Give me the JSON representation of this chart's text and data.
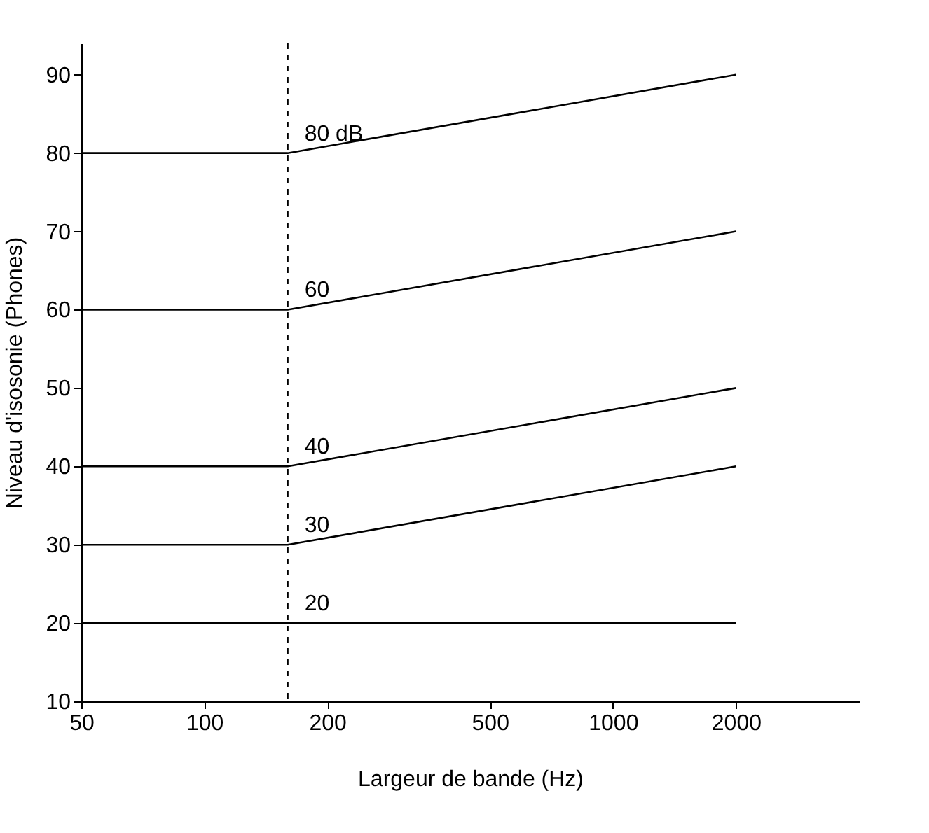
{
  "chart_data": {
    "type": "line",
    "xlabel": "Largeur de bande (Hz)",
    "ylabel": "Niveau d'isosonie (Phones)",
    "xlim": [
      50,
      4000
    ],
    "xticks": [
      50,
      100,
      200,
      500,
      1000,
      2000
    ],
    "ylim": [
      10,
      94
    ],
    "yticks": [
      10,
      20,
      30,
      40,
      50,
      60,
      70,
      80,
      90
    ],
    "log": "x",
    "series": [
      {
        "name": "80 dB",
        "color": "#000000",
        "x": [
          50,
          160,
          2000
        ],
        "values": [
          80,
          80,
          90
        ]
      },
      {
        "name": "60",
        "color": "#000000",
        "x": [
          50,
          160,
          2000
        ],
        "values": [
          60,
          60,
          70
        ]
      },
      {
        "name": "40",
        "color": "#000000",
        "x": [
          50,
          160,
          2000
        ],
        "values": [
          40,
          40,
          50
        ]
      },
      {
        "name": "30",
        "color": "#000000",
        "x": [
          50,
          160,
          2000
        ],
        "values": [
          30,
          30,
          40
        ]
      },
      {
        "name": "20",
        "color": "#000000",
        "x": [
          50,
          2000
        ],
        "values": [
          20,
          20
        ]
      }
    ],
    "ref_lines": [
      {
        "axis": "x",
        "value": 160,
        "color": "#000000",
        "line_style": "dashed"
      }
    ],
    "grid": false,
    "legend": false,
    "line_style": "solid"
  }
}
